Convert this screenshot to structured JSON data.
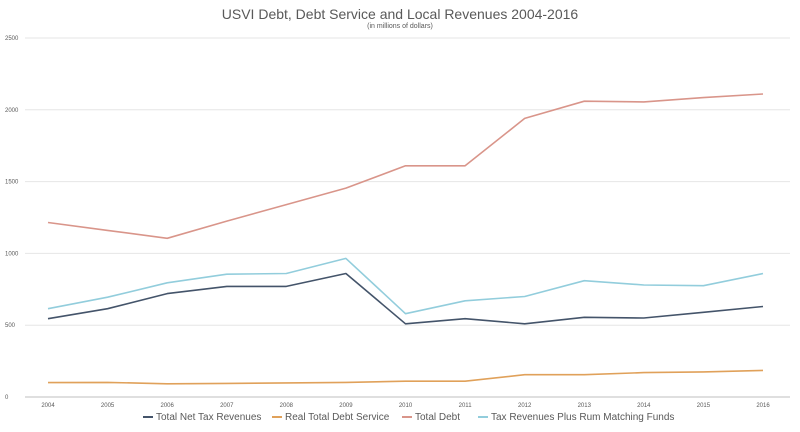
{
  "chart_data": {
    "type": "line",
    "title": "USVI Debt, Debt Service and Local Revenues 2004-2016",
    "subtitle": "(in millions of dollars)",
    "xlabel": "",
    "ylabel": "",
    "categories": [
      "2004",
      "2005",
      "2006",
      "2007",
      "2008",
      "2009",
      "2010",
      "2011",
      "2012",
      "2013",
      "2014",
      "2015",
      "2016"
    ],
    "ylim": [
      0,
      2500
    ],
    "yticks": [
      "0",
      "500",
      "1000",
      "1500",
      "2000",
      "2500"
    ],
    "grid": true,
    "legend": "bottom",
    "series": [
      {
        "name": "Total Net Tax Revenues",
        "color": "#44546a",
        "values": [
          545,
          615,
          720,
          770,
          770,
          860,
          510,
          545,
          510,
          555,
          550,
          590,
          630
        ]
      },
      {
        "name": "Real Total Debt Service",
        "color": "#e0a15a",
        "values": [
          100,
          102,
          92,
          95,
          98,
          102,
          110,
          110,
          155,
          155,
          170,
          175,
          185
        ]
      },
      {
        "name": "Total Debt",
        "color": "#d9958a",
        "values": [
          1215,
          1160,
          1105,
          1225,
          1340,
          1455,
          1610,
          1610,
          1940,
          2060,
          2055,
          2085,
          2110
        ]
      },
      {
        "name": "Tax Revenues Plus Rum Matching Funds",
        "color": "#92cddc",
        "values": [
          615,
          695,
          795,
          855,
          860,
          965,
          580,
          670,
          700,
          810,
          780,
          775,
          860
        ]
      }
    ]
  }
}
